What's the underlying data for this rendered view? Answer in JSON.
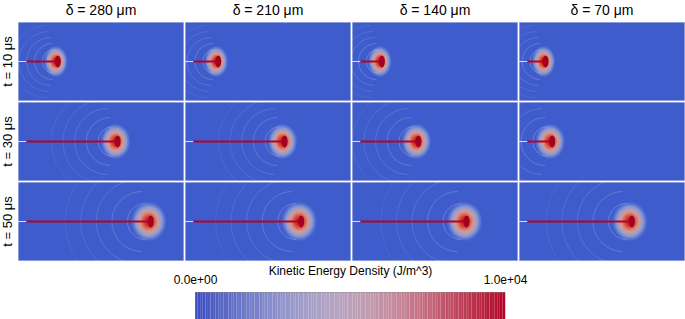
{
  "chart_data": {
    "type": "heatmap_grid",
    "columns": [
      "δ = 280 μm",
      "δ = 210 μm",
      "δ = 140 μm",
      "δ = 70 μm"
    ],
    "rows": [
      "t = 10 μs",
      "t = 30 μs",
      "t = 50 μs"
    ],
    "colorbar": {
      "label": "Kinetic Energy Density (J/m^3)",
      "range": [
        0,
        10000
      ],
      "ticks": [
        {
          "value": 0,
          "label": "0.0e+00"
        },
        {
          "value": 10000,
          "label": "1.0e+04"
        }
      ]
    }
  }
}
